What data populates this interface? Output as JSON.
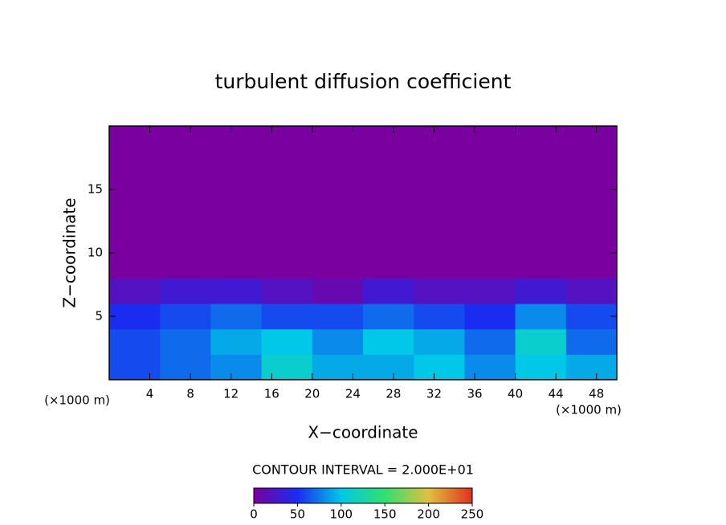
{
  "chart_data": {
    "type": "heatmap",
    "title": "turbulent diffusion coefficient",
    "xlabel": "X−coordinate",
    "ylabel": "Z−coordinate",
    "xunit": "(×1000 m)",
    "yunit": "(×1000 m)",
    "xlim": [
      0,
      50
    ],
    "ylim": [
      0,
      20
    ],
    "xticks": [
      4,
      8,
      12,
      16,
      20,
      24,
      28,
      32,
      36,
      40,
      44,
      48
    ],
    "yticks": [
      5,
      10,
      15
    ],
    "x": [
      0,
      5,
      10,
      15,
      20,
      25,
      30,
      35,
      40,
      45
    ],
    "y": [
      0,
      2,
      4,
      6,
      8,
      10,
      12,
      14,
      16,
      18
    ],
    "z": [
      [
        60,
        70,
        80,
        110,
        90,
        90,
        100,
        80,
        100,
        90
      ],
      [
        60,
        70,
        90,
        100,
        80,
        100,
        90,
        70,
        110,
        70
      ],
      [
        50,
        60,
        70,
        60,
        60,
        70,
        60,
        50,
        80,
        60
      ],
      [
        20,
        30,
        30,
        20,
        10,
        30,
        20,
        20,
        30,
        20
      ],
      [
        0,
        0,
        0,
        0,
        0,
        0,
        0,
        0,
        0,
        0
      ],
      [
        0,
        0,
        0,
        0,
        0,
        0,
        0,
        0,
        0,
        0
      ],
      [
        0,
        0,
        0,
        0,
        0,
        0,
        0,
        0,
        0,
        0
      ],
      [
        0,
        0,
        0,
        0,
        0,
        0,
        0,
        0,
        0,
        0
      ],
      [
        0,
        0,
        0,
        0,
        0,
        0,
        0,
        0,
        0,
        0
      ],
      [
        0,
        0,
        0,
        0,
        0,
        0,
        0,
        0,
        0,
        0
      ]
    ],
    "contour_note": "CONTOUR INTERVAL = 2.000E+01",
    "clim": [
      0,
      250
    ],
    "colorbar_ticks": [
      0,
      50,
      100,
      150,
      200,
      250
    ],
    "colorscale": [
      "#7a00a0",
      "#1a2cf0",
      "#00c8e6",
      "#30e070",
      "#e0c040",
      "#e03020"
    ]
  }
}
